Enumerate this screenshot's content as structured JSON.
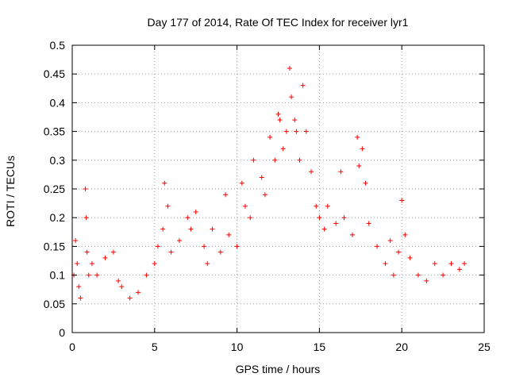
{
  "chart_data": {
    "type": "scatter",
    "title": "Day 177 of 2014, Rate Of TEC Index for receiver lyr1",
    "xlabel": "GPS time / hours",
    "ylabel": "ROTI / TECUs",
    "xlim": [
      0,
      25
    ],
    "ylim": [
      0,
      0.5
    ],
    "xticks": [
      0,
      5,
      10,
      15,
      20,
      25
    ],
    "xtick_labels": [
      "0",
      "5",
      "10",
      "15",
      "20",
      "25"
    ],
    "yticks": [
      0,
      0.05,
      0.1,
      0.15,
      0.2,
      0.25,
      0.3,
      0.35,
      0.4,
      0.45,
      0.5
    ],
    "ytick_labels": [
      "0",
      "0.05",
      "0.1",
      "0.15",
      "0.2",
      "0.25",
      "0.3",
      "0.35",
      "0.4",
      "0.45",
      "0.5"
    ],
    "grid": true,
    "marker": "+",
    "color": "#ff0000",
    "series": [
      {
        "name": "ROTI",
        "x": [
          0.1,
          0.2,
          0.3,
          0.4,
          0.5,
          0.8,
          0.85,
          0.9,
          1.0,
          1.2,
          1.5,
          2.0,
          2.5,
          2.8,
          3.0,
          3.5,
          4.0,
          4.5,
          5.0,
          5.2,
          5.5,
          5.6,
          5.8,
          6.0,
          6.5,
          7.0,
          7.2,
          7.5,
          8.0,
          8.2,
          8.5,
          9.0,
          9.3,
          9.5,
          10.0,
          10.3,
          10.5,
          10.8,
          11.0,
          11.5,
          11.7,
          12.0,
          12.3,
          12.5,
          12.6,
          12.8,
          13.0,
          13.2,
          13.3,
          13.5,
          13.6,
          13.8,
          14.0,
          14.2,
          14.5,
          14.8,
          15.0,
          15.3,
          15.5,
          16.0,
          16.3,
          16.5,
          17.0,
          17.3,
          17.4,
          17.6,
          17.8,
          18.0,
          18.5,
          19.0,
          19.3,
          19.5,
          19.8,
          20.0,
          20.2,
          20.5,
          21.0,
          21.5,
          22.0,
          22.5,
          23.0,
          23.5,
          23.8
        ],
        "y": [
          0.1,
          0.16,
          0.12,
          0.08,
          0.06,
          0.25,
          0.2,
          0.14,
          0.1,
          0.12,
          0.1,
          0.13,
          0.14,
          0.09,
          0.08,
          0.06,
          0.07,
          0.1,
          0.12,
          0.15,
          0.18,
          0.26,
          0.22,
          0.14,
          0.16,
          0.2,
          0.18,
          0.21,
          0.15,
          0.12,
          0.18,
          0.14,
          0.24,
          0.17,
          0.15,
          0.26,
          0.22,
          0.2,
          0.3,
          0.27,
          0.24,
          0.34,
          0.3,
          0.38,
          0.37,
          0.32,
          0.35,
          0.46,
          0.41,
          0.37,
          0.35,
          0.3,
          0.43,
          0.35,
          0.28,
          0.22,
          0.2,
          0.18,
          0.22,
          0.19,
          0.28,
          0.2,
          0.17,
          0.34,
          0.29,
          0.32,
          0.26,
          0.19,
          0.15,
          0.12,
          0.16,
          0.1,
          0.14,
          0.23,
          0.17,
          0.13,
          0.1,
          0.09,
          0.12,
          0.1,
          0.12,
          0.11,
          0.12
        ]
      }
    ]
  }
}
